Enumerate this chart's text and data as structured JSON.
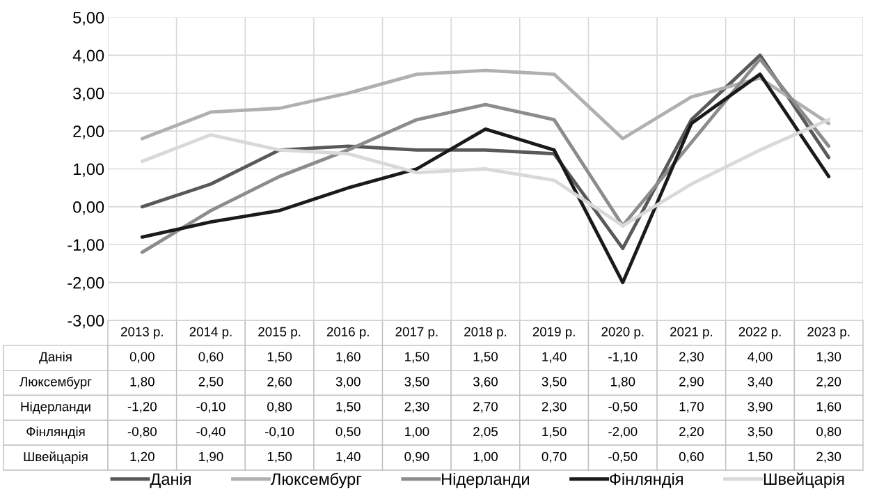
{
  "chart_data": {
    "type": "line",
    "categories": [
      "2013 р.",
      "2014 р.",
      "2015 р.",
      "2016 р.",
      "2017 р.",
      "2018 р.",
      "2019 р.",
      "2020 р.",
      "2021 р.",
      "2022 р.",
      "2023 р."
    ],
    "ylim": [
      -3,
      5
    ],
    "yticks": [
      {
        "value": -3,
        "label": "-3,00"
      },
      {
        "value": -2,
        "label": "-2,00"
      },
      {
        "value": -1,
        "label": "-1,00"
      },
      {
        "value": 0,
        "label": "0,00"
      },
      {
        "value": 1,
        "label": "1,00"
      },
      {
        "value": 2,
        "label": "2,00"
      },
      {
        "value": 3,
        "label": "3,00"
      },
      {
        "value": 4,
        "label": "4,00"
      },
      {
        "value": 5,
        "label": "5,00"
      }
    ],
    "grid": true,
    "legend": "bottom",
    "marker": "none",
    "line_style": "solid",
    "series": [
      {
        "name": "Данія",
        "color": "#595959",
        "values": [
          0.0,
          0.6,
          1.5,
          1.6,
          1.5,
          1.5,
          1.4,
          -1.1,
          2.3,
          4.0,
          1.3
        ],
        "value_labels": [
          "0,00",
          "0,60",
          "1,50",
          "1,60",
          "1,50",
          "1,50",
          "1,40",
          "-1,10",
          "2,30",
          "4,00",
          "1,30"
        ]
      },
      {
        "name": "Люксембург",
        "color": "#b0b0b0",
        "values": [
          1.8,
          2.5,
          2.6,
          3.0,
          3.5,
          3.6,
          3.5,
          1.8,
          2.9,
          3.4,
          2.2
        ],
        "value_labels": [
          "1,80",
          "2,50",
          "2,60",
          "3,00",
          "3,50",
          "3,60",
          "3,50",
          "1,80",
          "2,90",
          "3,40",
          "2,20"
        ]
      },
      {
        "name": "Нідерланди",
        "color": "#8c8c8c",
        "values": [
          -1.2,
          -0.1,
          0.8,
          1.5,
          2.3,
          2.7,
          2.3,
          -0.5,
          1.7,
          3.9,
          1.6
        ],
        "value_labels": [
          "-1,20",
          "-0,10",
          "0,80",
          "1,50",
          "2,30",
          "2,70",
          "2,30",
          "-0,50",
          "1,70",
          "3,90",
          "1,60"
        ]
      },
      {
        "name": "Фінляндія",
        "color": "#1a1a1a",
        "values": [
          -0.8,
          -0.4,
          -0.1,
          0.5,
          1.0,
          2.05,
          1.5,
          -2.0,
          2.2,
          3.5,
          0.8
        ],
        "value_labels": [
          "-0,80",
          "-0,40",
          "-0,10",
          "0,50",
          "1,00",
          "2,05",
          "1,50",
          "-2,00",
          "2,20",
          "3,50",
          "0,80"
        ]
      },
      {
        "name": "Швейцарія",
        "color": "#d9d9d9",
        "values": [
          1.2,
          1.9,
          1.5,
          1.4,
          0.9,
          1.0,
          0.7,
          -0.5,
          0.6,
          1.5,
          2.3
        ],
        "value_labels": [
          "1,20",
          "1,90",
          "1,50",
          "1,40",
          "0,90",
          "1,00",
          "0,70",
          "-0,50",
          "0,60",
          "1,50",
          "2,30"
        ]
      }
    ]
  }
}
